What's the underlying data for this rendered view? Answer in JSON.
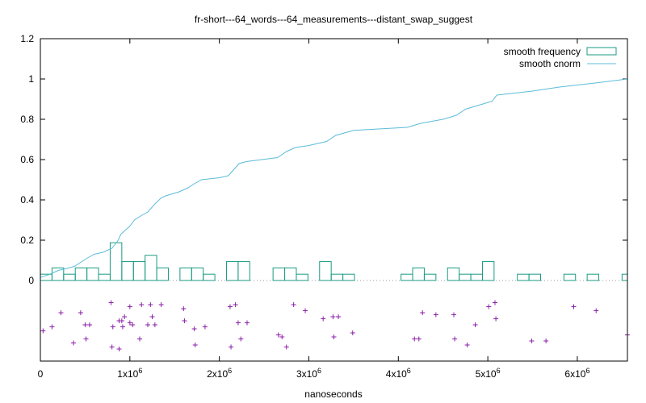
{
  "chart_data": {
    "type": "bar",
    "title": "fr-short---64_words---64_measurements---distant_swap_suggest",
    "xlabel": "nanoseconds",
    "ylabel": "",
    "xlim": [
      0,
      6560000
    ],
    "ylim": [
      -0.4,
      1.2
    ],
    "x_ticks": [
      {
        "value": 0,
        "mantissa": "0",
        "exp": ""
      },
      {
        "value": 1000000,
        "mantissa": "1x10",
        "exp": "6"
      },
      {
        "value": 2000000,
        "mantissa": "2x10",
        "exp": "6"
      },
      {
        "value": 3000000,
        "mantissa": "3x10",
        "exp": "6"
      },
      {
        "value": 4000000,
        "mantissa": "4x10",
        "exp": "6"
      },
      {
        "value": 5000000,
        "mantissa": "5x10",
        "exp": "6"
      },
      {
        "value": 6000000,
        "mantissa": "6x10",
        "exp": "6"
      }
    ],
    "y_ticks": [
      {
        "value": 0,
        "label": "0"
      },
      {
        "value": 0.2,
        "label": "0.2"
      },
      {
        "value": 0.4,
        "label": "0.4"
      },
      {
        "value": 0.6,
        "label": "0.6"
      },
      {
        "value": 0.8,
        "label": "0.8"
      },
      {
        "value": 1.0,
        "label": "1"
      },
      {
        "value": 1.2,
        "label": "1.2"
      }
    ],
    "legend": {
      "position": "top-right",
      "entries": [
        {
          "name": "smooth frequency",
          "style": "box",
          "color": "#1a9b82"
        },
        {
          "name": "smooth cnorm",
          "style": "line",
          "color": "#5bbcd8"
        }
      ]
    },
    "bin_width": 130000,
    "frequency": [
      {
        "x": 0,
        "y": 0.03125
      },
      {
        "x": 130000,
        "y": 0.0625
      },
      {
        "x": 260000,
        "y": 0.03125
      },
      {
        "x": 390000,
        "y": 0.0625
      },
      {
        "x": 520000,
        "y": 0.0625
      },
      {
        "x": 650000,
        "y": 0.03125
      },
      {
        "x": 780000,
        "y": 0.1875
      },
      {
        "x": 910000,
        "y": 0.09375
      },
      {
        "x": 1040000,
        "y": 0.09375
      },
      {
        "x": 1170000,
        "y": 0.125
      },
      {
        "x": 1300000,
        "y": 0.0625
      },
      {
        "x": 1560000,
        "y": 0.0625
      },
      {
        "x": 1690000,
        "y": 0.0625
      },
      {
        "x": 1820000,
        "y": 0.03125
      },
      {
        "x": 2080000,
        "y": 0.09375
      },
      {
        "x": 2210000,
        "y": 0.09375
      },
      {
        "x": 2600000,
        "y": 0.0625
      },
      {
        "x": 2730000,
        "y": 0.0625
      },
      {
        "x": 2860000,
        "y": 0.03125
      },
      {
        "x": 3120000,
        "y": 0.09375
      },
      {
        "x": 3250000,
        "y": 0.03125
      },
      {
        "x": 3380000,
        "y": 0.03125
      },
      {
        "x": 4030000,
        "y": 0.03125
      },
      {
        "x": 4160000,
        "y": 0.0625
      },
      {
        "x": 4290000,
        "y": 0.03125
      },
      {
        "x": 4550000,
        "y": 0.0625
      },
      {
        "x": 4680000,
        "y": 0.03125
      },
      {
        "x": 4810000,
        "y": 0.03125
      },
      {
        "x": 4940000,
        "y": 0.09375
      },
      {
        "x": 5330000,
        "y": 0.03125
      },
      {
        "x": 5460000,
        "y": 0.03125
      },
      {
        "x": 5850000,
        "y": 0.03125
      },
      {
        "x": 6110000,
        "y": 0.03125
      },
      {
        "x": 6500000,
        "y": 0.03125
      }
    ],
    "cnorm": [
      [
        0,
        0.015
      ],
      [
        100000,
        0.03
      ],
      [
        200000,
        0.05
      ],
      [
        300000,
        0.06
      ],
      [
        380000,
        0.07
      ],
      [
        450000,
        0.09
      ],
      [
        520000,
        0.11
      ],
      [
        600000,
        0.13
      ],
      [
        700000,
        0.14
      ],
      [
        800000,
        0.16
      ],
      [
        870000,
        0.2
      ],
      [
        900000,
        0.23
      ],
      [
        950000,
        0.25
      ],
      [
        1000000,
        0.27
      ],
      [
        1050000,
        0.3
      ],
      [
        1120000,
        0.32
      ],
      [
        1200000,
        0.34
      ],
      [
        1280000,
        0.38
      ],
      [
        1350000,
        0.41
      ],
      [
        1400000,
        0.42
      ],
      [
        1550000,
        0.44
      ],
      [
        1650000,
        0.46
      ],
      [
        1720000,
        0.48
      ],
      [
        1800000,
        0.5
      ],
      [
        2000000,
        0.51
      ],
      [
        2100000,
        0.52
      ],
      [
        2180000,
        0.56
      ],
      [
        2220000,
        0.58
      ],
      [
        2300000,
        0.59
      ],
      [
        2650000,
        0.61
      ],
      [
        2750000,
        0.64
      ],
      [
        2850000,
        0.66
      ],
      [
        3000000,
        0.67
      ],
      [
        3200000,
        0.69
      ],
      [
        3300000,
        0.72
      ],
      [
        3500000,
        0.745
      ],
      [
        3700000,
        0.75
      ],
      [
        3900000,
        0.755
      ],
      [
        4100000,
        0.76
      ],
      [
        4250000,
        0.78
      ],
      [
        4500000,
        0.8
      ],
      [
        4650000,
        0.82
      ],
      [
        4750000,
        0.85
      ],
      [
        4900000,
        0.87
      ],
      [
        5050000,
        0.89
      ],
      [
        5100000,
        0.92
      ],
      [
        5500000,
        0.94
      ],
      [
        5800000,
        0.96
      ],
      [
        6200000,
        0.98
      ],
      [
        6560000,
        1.0
      ]
    ],
    "jitter_points": [
      [
        30000,
        -0.25
      ],
      [
        130000,
        -0.23
      ],
      [
        230000,
        -0.16
      ],
      [
        370000,
        -0.31
      ],
      [
        450000,
        -0.16
      ],
      [
        500000,
        -0.22
      ],
      [
        510000,
        -0.29
      ],
      [
        550000,
        -0.22
      ],
      [
        790000,
        -0.11
      ],
      [
        800000,
        -0.33
      ],
      [
        810000,
        -0.23
      ],
      [
        880000,
        -0.2
      ],
      [
        880000,
        -0.34
      ],
      [
        910000,
        -0.2
      ],
      [
        920000,
        -0.23
      ],
      [
        940000,
        -0.18
      ],
      [
        1000000,
        -0.21
      ],
      [
        1000000,
        -0.13
      ],
      [
        1030000,
        -0.22
      ],
      [
        1110000,
        -0.29
      ],
      [
        1130000,
        -0.12
      ],
      [
        1200000,
        -0.22
      ],
      [
        1230000,
        -0.12
      ],
      [
        1250000,
        -0.18
      ],
      [
        1280000,
        -0.22
      ],
      [
        1350000,
        -0.12
      ],
      [
        1600000,
        -0.14
      ],
      [
        1610000,
        -0.2
      ],
      [
        1720000,
        -0.24
      ],
      [
        1730000,
        -0.32
      ],
      [
        1840000,
        -0.23
      ],
      [
        2120000,
        -0.13
      ],
      [
        2130000,
        -0.33
      ],
      [
        2180000,
        -0.12
      ],
      [
        2210000,
        -0.21
      ],
      [
        2240000,
        -0.29
      ],
      [
        2310000,
        -0.21
      ],
      [
        2660000,
        -0.27
      ],
      [
        2700000,
        -0.28
      ],
      [
        2750000,
        -0.33
      ],
      [
        2830000,
        -0.12
      ],
      [
        2960000,
        -0.15
      ],
      [
        3160000,
        -0.19
      ],
      [
        3270000,
        -0.18
      ],
      [
        3280000,
        -0.28
      ],
      [
        3330000,
        -0.18
      ],
      [
        3490000,
        -0.26
      ],
      [
        4180000,
        -0.29
      ],
      [
        4230000,
        -0.29
      ],
      [
        4270000,
        -0.16
      ],
      [
        4420000,
        -0.17
      ],
      [
        4620000,
        -0.17
      ],
      [
        4630000,
        -0.29
      ],
      [
        4770000,
        -0.32
      ],
      [
        4860000,
        -0.22
      ],
      [
        5010000,
        -0.13
      ],
      [
        5080000,
        -0.11
      ],
      [
        5090000,
        -0.19
      ],
      [
        5490000,
        -0.3
      ],
      [
        5650000,
        -0.3
      ],
      [
        5960000,
        -0.13
      ],
      [
        6210000,
        -0.15
      ],
      [
        6560000,
        -0.27
      ]
    ]
  }
}
